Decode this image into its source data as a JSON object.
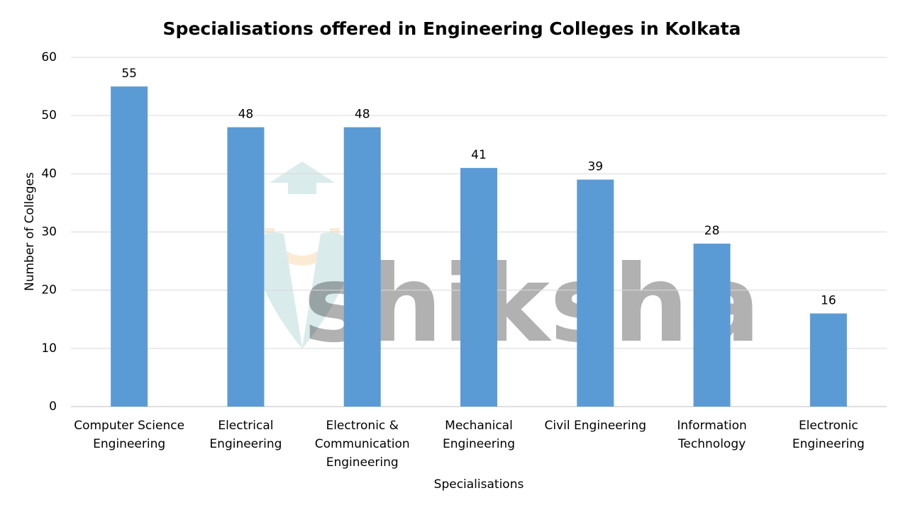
{
  "chart_data": {
    "type": "bar",
    "title": "Specialisations offered in Engineering Colleges in Kolkata",
    "x_label": "Specialisations",
    "y_label": "Number of Colleges",
    "watermark": "shiksha",
    "categories": [
      "Computer Science Engineering",
      "Electrical Engineering",
      "Electronic & Communication Engineering",
      "Mechanical Engineering",
      "Civil Engineering",
      "Information Technology",
      "Electronic Engineering"
    ],
    "values": [
      55,
      48,
      48,
      41,
      39,
      28,
      16
    ],
    "color": "#5b9bd5",
    "ylim": [
      0,
      60
    ],
    "yticks": [
      0,
      10,
      20,
      30,
      40,
      50,
      60
    ],
    "grid": true
  }
}
